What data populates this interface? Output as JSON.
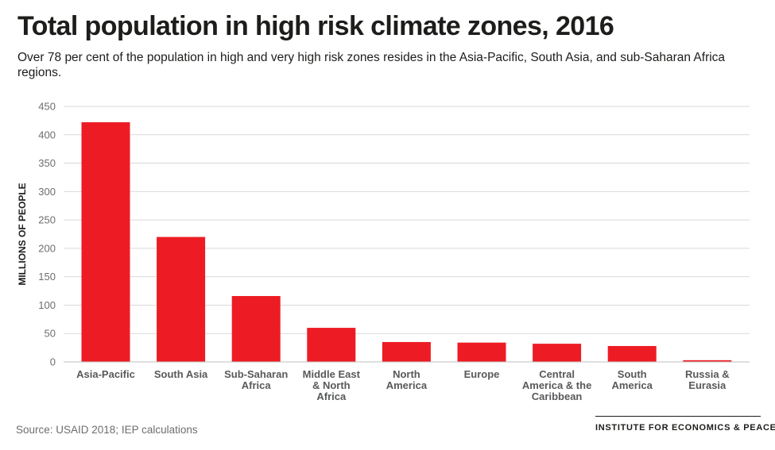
{
  "header": {
    "title": "Total population in high risk climate zones, 2016",
    "subtitle": "Over 78 per cent of the population in high and very high risk zones resides in the Asia-Pacific, South Asia, and sub-Saharan Africa regions."
  },
  "footer": {
    "source": "Source: USAID 2018; IEP calculations",
    "brand": "INSTITUTE FOR ECONOMICS & PEACE"
  },
  "chart_data": {
    "type": "bar",
    "title": "Total population in high risk climate zones, 2016",
    "xlabel": "",
    "ylabel": "MILLIONS OF PEOPLE",
    "ylim": [
      0,
      450
    ],
    "yticks": [
      0,
      50,
      100,
      150,
      200,
      250,
      300,
      350,
      400,
      450
    ],
    "grid": true,
    "legend": "none",
    "bar_color": "#ed1c24",
    "categories": [
      [
        "Asia-Pacific"
      ],
      [
        "South Asia"
      ],
      [
        "Sub-Saharan",
        "Africa"
      ],
      [
        "Middle East",
        "& North",
        "Africa"
      ],
      [
        "North",
        "America"
      ],
      [
        "Europe"
      ],
      [
        "Central",
        "America & the",
        "Caribbean"
      ],
      [
        "South",
        "America"
      ],
      [
        "Russia &",
        "Eurasia"
      ]
    ],
    "values": [
      422,
      220,
      116,
      60,
      35,
      34,
      32,
      28,
      3
    ]
  }
}
